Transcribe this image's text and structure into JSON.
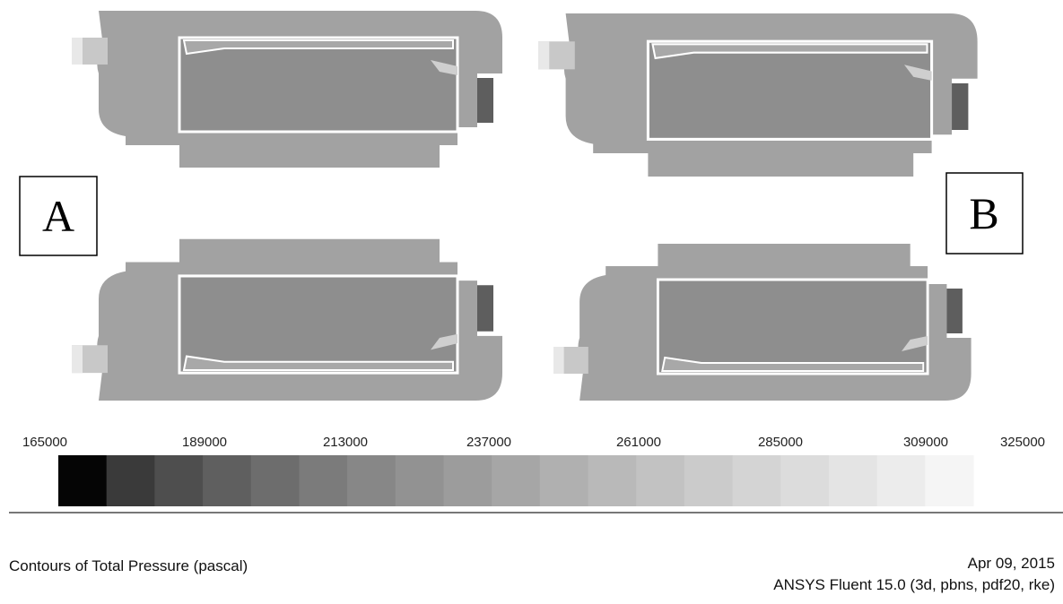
{
  "panels": {
    "left_label": "A",
    "right_label": "B"
  },
  "colorbar": {
    "labels": [
      "165000",
      "189000",
      "213000",
      "237000",
      "261000",
      "285000",
      "309000",
      "325000"
    ],
    "colors": [
      "#050505",
      "#3a3a3a",
      "#4e4e4e",
      "#5f5f5f",
      "#6d6d6d",
      "#7b7b7b",
      "#878787",
      "#929292",
      "#9c9c9c",
      "#a6a6a6",
      "#b0b0b0",
      "#b9b9b9",
      "#c2c2c2",
      "#cbcbcb",
      "#d4d4d4",
      "#dcdcdc",
      "#e4e4e4",
      "#ececec",
      "#f5f5f5"
    ]
  },
  "footer": {
    "title": "Contours of Total Pressure (pascal)",
    "date": "Apr 09, 2015",
    "software": "ANSYS Fluent 15.0 (3d, pbns, pdf20, rke)"
  }
}
